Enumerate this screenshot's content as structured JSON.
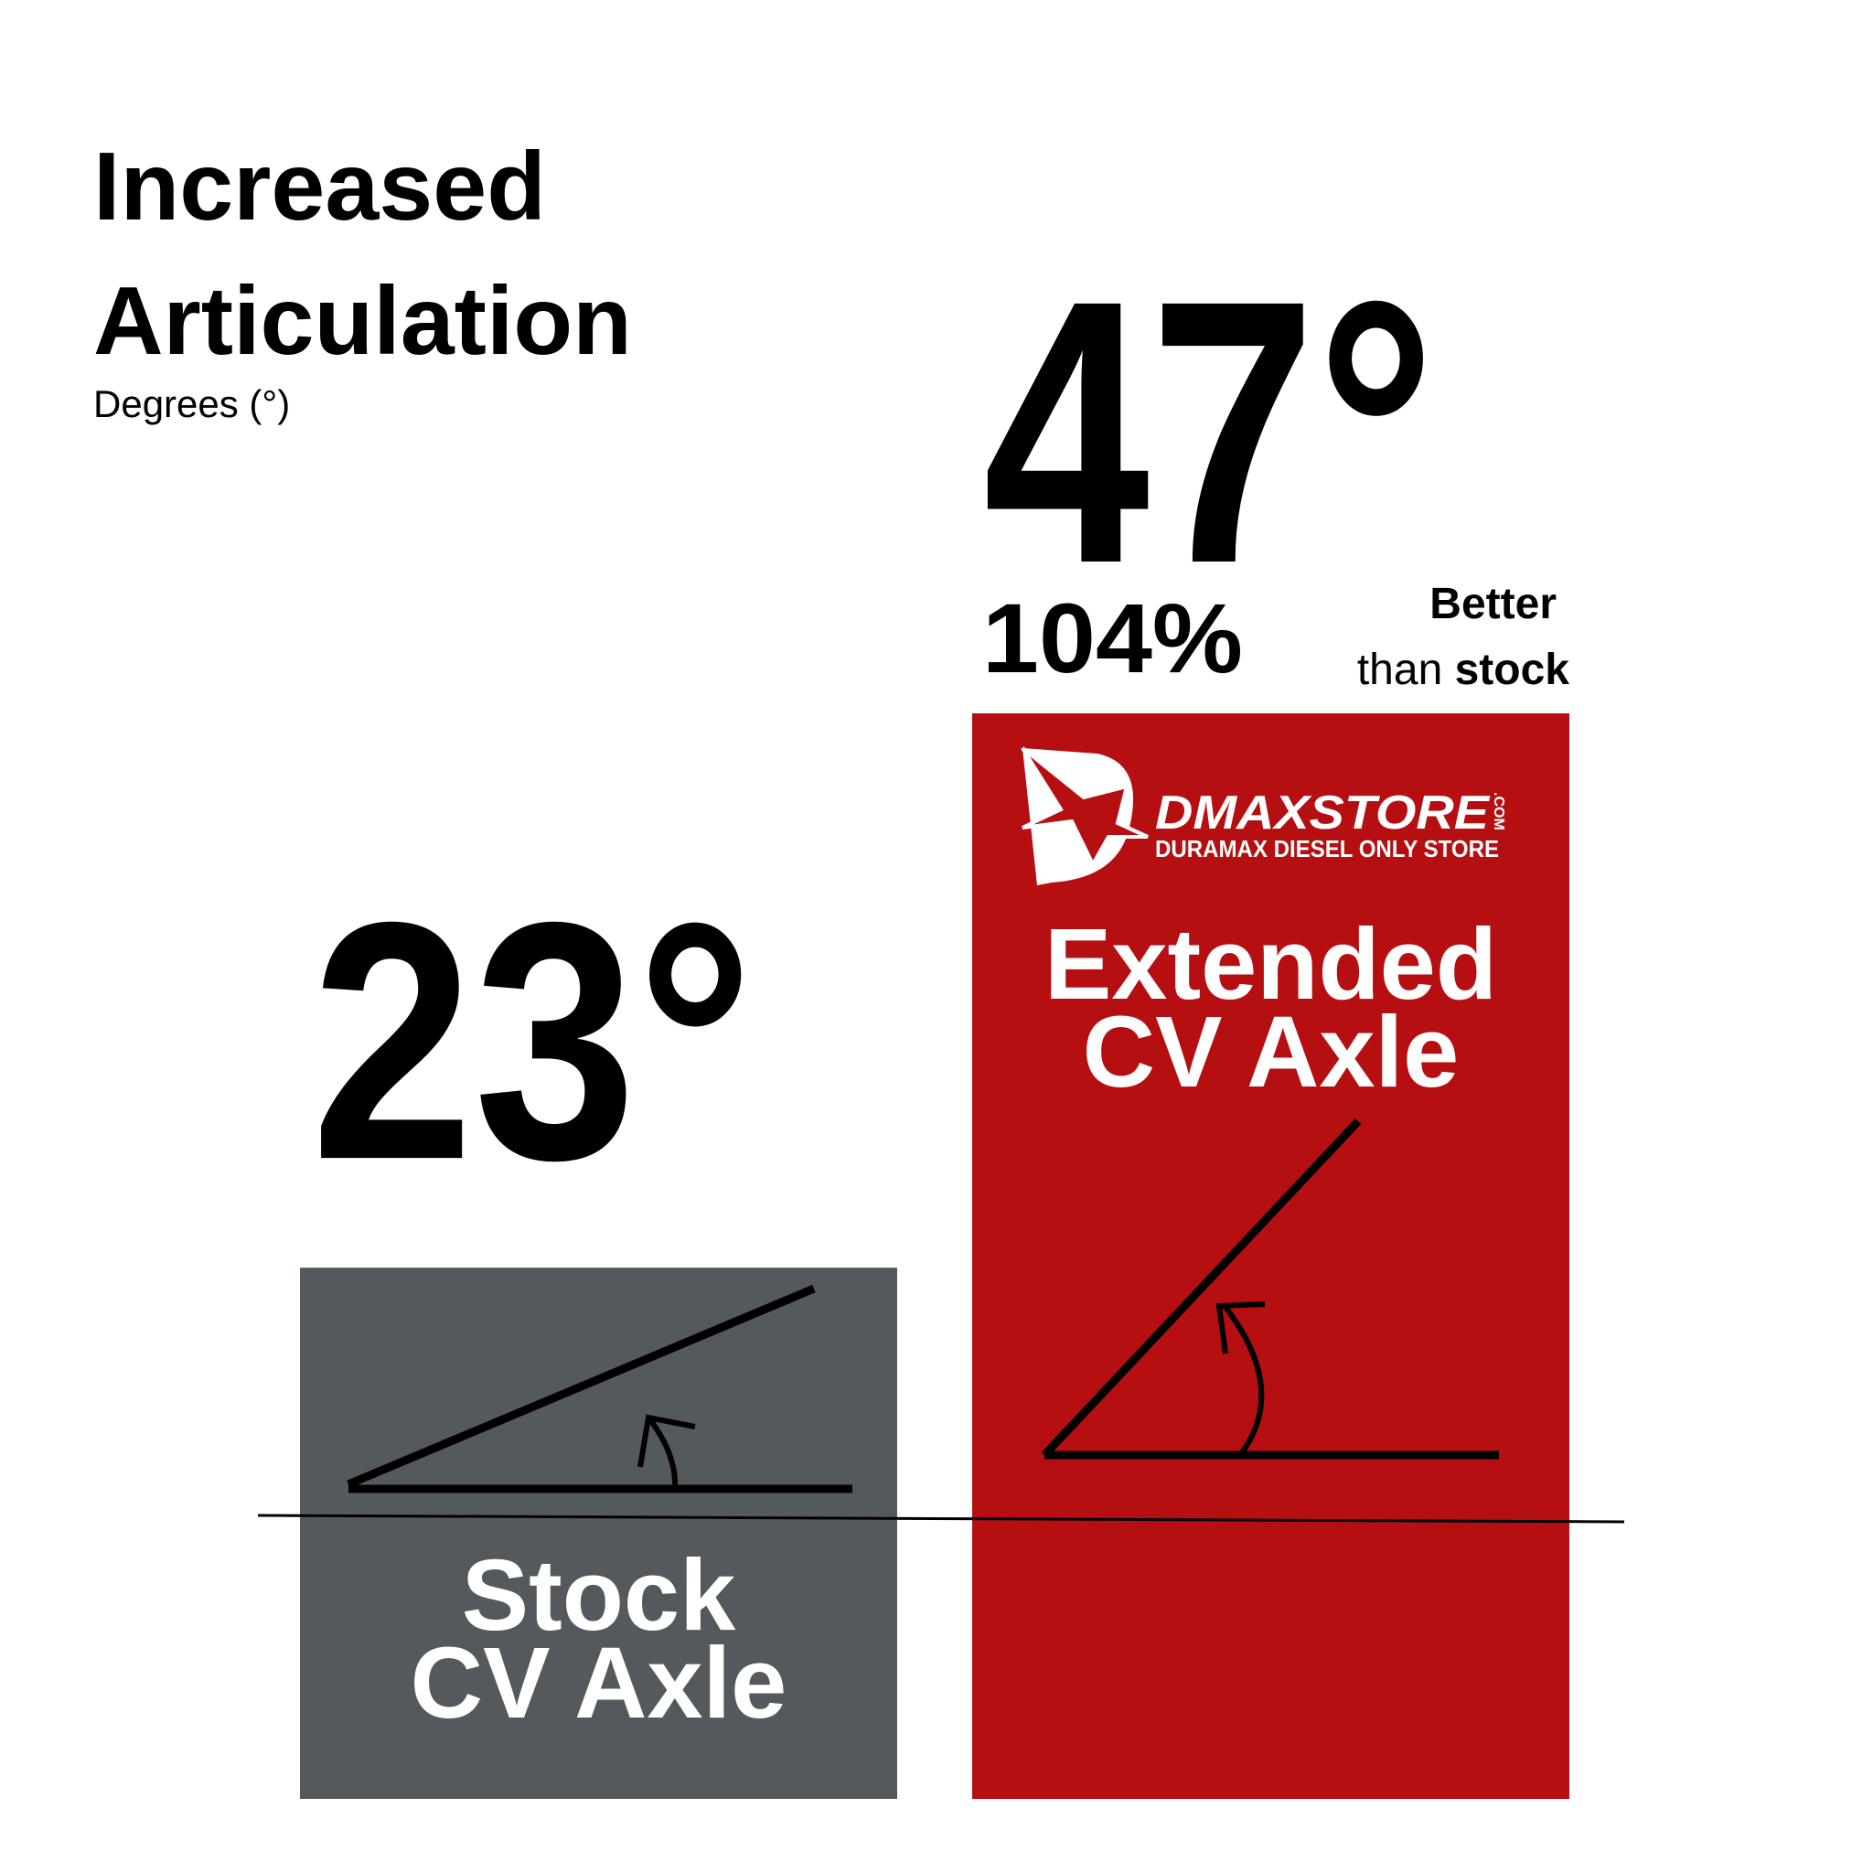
{
  "chart_data": {
    "type": "bar",
    "title": "Increased Articulation",
    "subtitle": "Degrees (°)",
    "categories": [
      "Stock CV Axle",
      "Extended CV Axle"
    ],
    "values": [
      23,
      47
    ],
    "value_labels": [
      "23°",
      "47°"
    ],
    "colors": [
      "#54595e",
      "#b50f12"
    ],
    "improvement": "104%",
    "annotation": [
      "Better",
      "than",
      "stock"
    ],
    "logo": {
      "name": "DMAXSTORE",
      "suffix": ".COM",
      "tagline": "DURAMAX DIESEL ONLY STORE"
    }
  }
}
